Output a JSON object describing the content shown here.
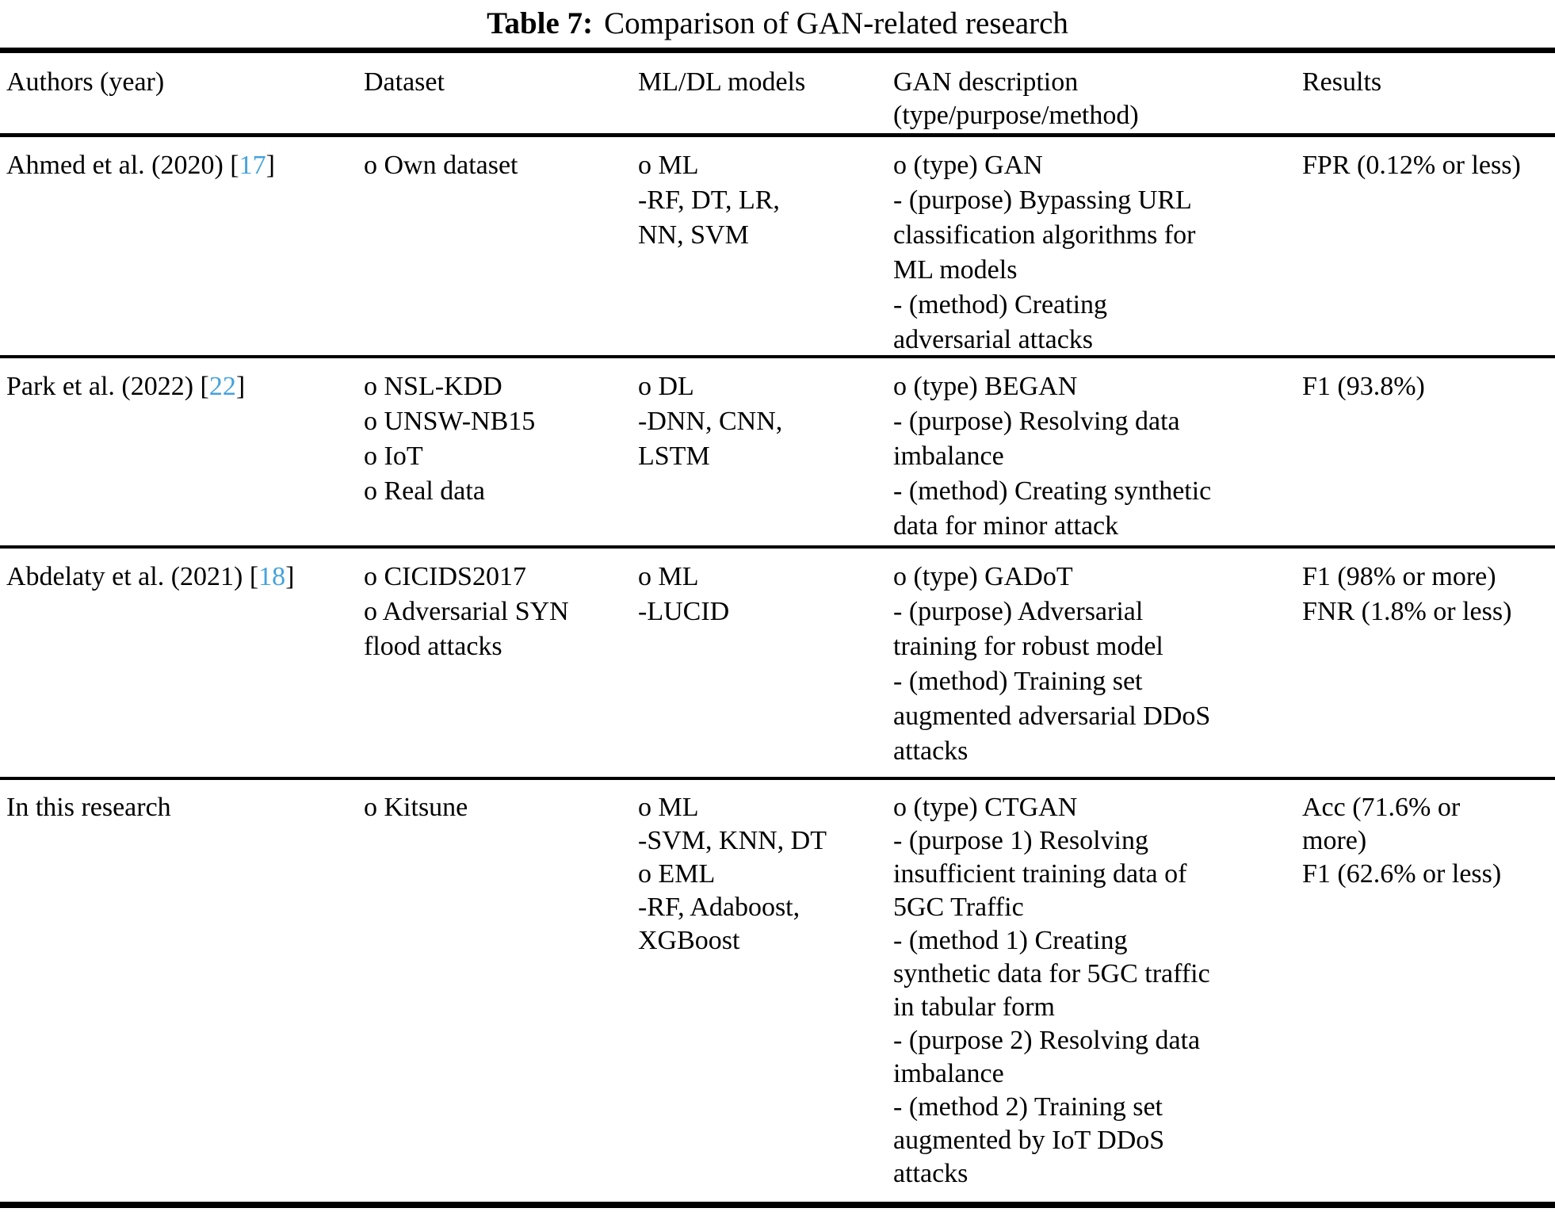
{
  "title": {
    "label": "Table 7:",
    "text": "Comparison of GAN-related research"
  },
  "link_color": "#45a2dc",
  "header": {
    "authors": "Authors (year)",
    "dataset": "Dataset",
    "models": "ML/DL models",
    "gan_line1": "GAN description",
    "gan_line2": "(type/purpose/method)",
    "results": "Results"
  },
  "rows": [
    {
      "authors": {
        "prefix": "Ahmed et al. (2020) [",
        "cite": "17",
        "suffix": "]"
      },
      "dataset": [
        "o Own dataset"
      ],
      "models": [
        "o ML",
        "-RF, DT, LR,",
        "NN, SVM"
      ],
      "gan": [
        "o (type) GAN",
        "- (purpose) Bypassing URL",
        "classification algorithms for",
        "ML models",
        "- (method) Creating",
        "adversarial attacks"
      ],
      "results": [
        "FPR (0.12% or less)"
      ]
    },
    {
      "authors": {
        "prefix": "Park et al. (2022) [",
        "cite": "22",
        "suffix": "]"
      },
      "dataset": [
        "o NSL-KDD",
        "o UNSW-NB15",
        "o IoT",
        "o Real data"
      ],
      "models": [
        "o DL",
        "-DNN, CNN,",
        "LSTM"
      ],
      "gan": [
        "o (type) BEGAN",
        "- (purpose) Resolving data",
        "imbalance",
        "- (method) Creating synthetic",
        "data for minor attack"
      ],
      "results": [
        "F1 (93.8%)"
      ]
    },
    {
      "authors": {
        "prefix": "Abdelaty et al. (2021) [",
        "cite": "18",
        "suffix": "]"
      },
      "dataset": [
        "o CICIDS2017",
        "o Adversarial SYN",
        "flood attacks"
      ],
      "models": [
        "o ML",
        "-LUCID"
      ],
      "gan": [
        "o (type) GADoT",
        "- (purpose) Adversarial",
        "training for robust model",
        "- (method) Training set",
        "augmented adversarial DDoS",
        "attacks"
      ],
      "results": [
        "F1 (98% or more)",
        "FNR (1.8% or less)"
      ]
    },
    {
      "authors": {
        "prefix": "In this research",
        "cite": null,
        "suffix": null
      },
      "dataset": [
        "o Kitsune"
      ],
      "models": [
        "o ML",
        "-SVM, KNN, DT",
        "o EML",
        "-RF, Adaboost,",
        "XGBoost"
      ],
      "gan": [
        "o (type) CTGAN",
        "- (purpose 1) Resolving",
        "insufficient training data of",
        "5GC Traffic",
        "- (method 1) Creating",
        "synthetic data for 5GC traffic",
        "in tabular form",
        "- (purpose 2) Resolving data",
        "imbalance",
        "- (method 2) Training set",
        "augmented by IoT DDoS",
        "attacks"
      ],
      "results": [
        "Acc (71.6% or",
        "more)",
        "F1 (62.6% or less)"
      ]
    }
  ]
}
